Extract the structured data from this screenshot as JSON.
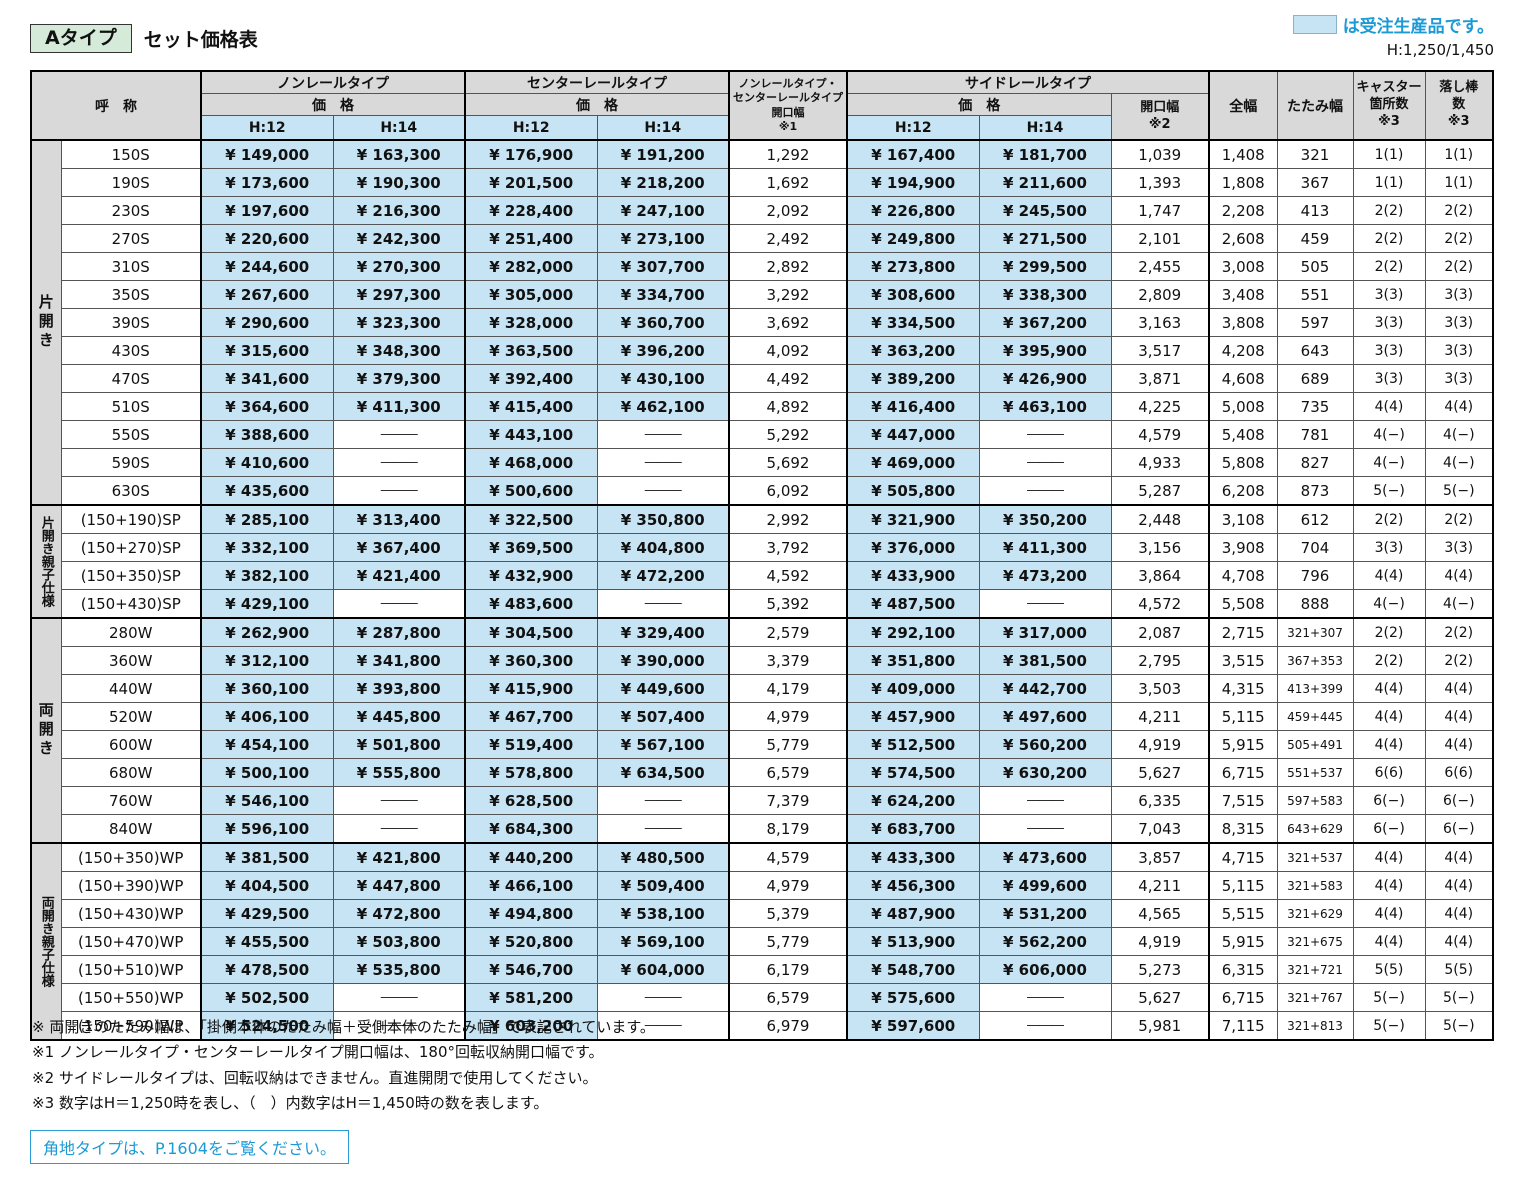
{
  "page": {
    "type_badge": "Aタイプ",
    "title": "セット価格表",
    "legend_text": "は受注生産品です。",
    "height_note": "H:1,250/1,450"
  },
  "colors": {
    "made_to_order_blue": "#c6e4f3",
    "header_gray": "#d9d9d9",
    "legend_text_blue": "#1c9ad6"
  },
  "table": {
    "headers": {
      "name": "呼　称",
      "nonrail": "ノンレールタイプ",
      "centerrail": "センターレールタイプ",
      "siderail": "サイドレールタイプ",
      "price": "価　格",
      "h12": "H:12",
      "h14": "H:14",
      "opening1_l1": "ノンレールタイプ・",
      "opening1_l2": "センターレールタイプ",
      "opening1_l3": "開口幅",
      "opening1_note": "※1",
      "opening2": "開口幅",
      "opening2_note": "※2",
      "zenpuku": "全幅",
      "tatami": "たたみ幅",
      "caster_l1": "キャスター",
      "caster_l2": "箇所数",
      "caster_note": "※3",
      "drop_l1": "落し棒",
      "drop_l2": "数",
      "drop_note": "※3"
    },
    "groups": [
      {
        "label": "片開き",
        "rows": [
          {
            "name": "150S",
            "nr12": "¥ 149,000",
            "nr14": "¥ 163,300",
            "cr12": "¥ 176,900",
            "cr14": "¥ 191,200",
            "open1": "1,292",
            "sr12": "¥ 167,400",
            "sr14": "¥ 181,700",
            "open2": "1,039",
            "zen": "1,408",
            "tatami": "321",
            "caster": "1(1)",
            "drop": "1(1)"
          },
          {
            "name": "190S",
            "nr12": "¥ 173,600",
            "nr14": "¥ 190,300",
            "cr12": "¥ 201,500",
            "cr14": "¥ 218,200",
            "open1": "1,692",
            "sr12": "¥ 194,900",
            "sr14": "¥ 211,600",
            "open2": "1,393",
            "zen": "1,808",
            "tatami": "367",
            "caster": "1(1)",
            "drop": "1(1)"
          },
          {
            "name": "230S",
            "nr12": "¥ 197,600",
            "nr14": "¥ 216,300",
            "cr12": "¥ 228,400",
            "cr14": "¥ 247,100",
            "open1": "2,092",
            "sr12": "¥ 226,800",
            "sr14": "¥ 245,500",
            "open2": "1,747",
            "zen": "2,208",
            "tatami": "413",
            "caster": "2(2)",
            "drop": "2(2)"
          },
          {
            "name": "270S",
            "nr12": "¥ 220,600",
            "nr14": "¥ 242,300",
            "cr12": "¥ 251,400",
            "cr14": "¥ 273,100",
            "open1": "2,492",
            "sr12": "¥ 249,800",
            "sr14": "¥ 271,500",
            "open2": "2,101",
            "zen": "2,608",
            "tatami": "459",
            "caster": "2(2)",
            "drop": "2(2)"
          },
          {
            "name": "310S",
            "nr12": "¥ 244,600",
            "nr14": "¥ 270,300",
            "cr12": "¥ 282,000",
            "cr14": "¥ 307,700",
            "open1": "2,892",
            "sr12": "¥ 273,800",
            "sr14": "¥ 299,500",
            "open2": "2,455",
            "zen": "3,008",
            "tatami": "505",
            "caster": "2(2)",
            "drop": "2(2)"
          },
          {
            "name": "350S",
            "nr12": "¥ 267,600",
            "nr14": "¥ 297,300",
            "cr12": "¥ 305,000",
            "cr14": "¥ 334,700",
            "open1": "3,292",
            "sr12": "¥ 308,600",
            "sr14": "¥ 338,300",
            "open2": "2,809",
            "zen": "3,408",
            "tatami": "551",
            "caster": "3(3)",
            "drop": "3(3)"
          },
          {
            "name": "390S",
            "nr12": "¥ 290,600",
            "nr14": "¥ 323,300",
            "cr12": "¥ 328,000",
            "cr14": "¥ 360,700",
            "open1": "3,692",
            "sr12": "¥ 334,500",
            "sr14": "¥ 367,200",
            "open2": "3,163",
            "zen": "3,808",
            "tatami": "597",
            "caster": "3(3)",
            "drop": "3(3)"
          },
          {
            "name": "430S",
            "nr12": "¥ 315,600",
            "nr14": "¥ 348,300",
            "cr12": "¥ 363,500",
            "cr14": "¥ 396,200",
            "open1": "4,092",
            "sr12": "¥ 363,200",
            "sr14": "¥ 395,900",
            "open2": "3,517",
            "zen": "4,208",
            "tatami": "643",
            "caster": "3(3)",
            "drop": "3(3)"
          },
          {
            "name": "470S",
            "nr12": "¥ 341,600",
            "nr14": "¥ 379,300",
            "cr12": "¥ 392,400",
            "cr14": "¥ 430,100",
            "open1": "4,492",
            "sr12": "¥ 389,200",
            "sr14": "¥ 426,900",
            "open2": "3,871",
            "zen": "4,608",
            "tatami": "689",
            "caster": "3(3)",
            "drop": "3(3)"
          },
          {
            "name": "510S",
            "nr12": "¥ 364,600",
            "nr14": "¥ 411,300",
            "cr12": "¥ 415,400",
            "cr14": "¥ 462,100",
            "open1": "4,892",
            "sr12": "¥ 416,400",
            "sr14": "¥ 463,100",
            "open2": "4,225",
            "zen": "5,008",
            "tatami": "735",
            "caster": "4(4)",
            "drop": "4(4)"
          },
          {
            "name": "550S",
            "nr12": "¥ 388,600",
            "nr14": "―――",
            "cr12": "¥ 443,100",
            "cr14": "―――",
            "open1": "5,292",
            "sr12": "¥ 447,000",
            "sr14": "―――",
            "open2": "4,579",
            "zen": "5,408",
            "tatami": "781",
            "caster": "4(−)",
            "drop": "4(−)"
          },
          {
            "name": "590S",
            "nr12": "¥ 410,600",
            "nr14": "―――",
            "cr12": "¥ 468,000",
            "cr14": "―――",
            "open1": "5,692",
            "sr12": "¥ 469,000",
            "sr14": "―――",
            "open2": "4,933",
            "zen": "5,808",
            "tatami": "827",
            "caster": "4(−)",
            "drop": "4(−)"
          },
          {
            "name": "630S",
            "nr12": "¥ 435,600",
            "nr14": "―――",
            "cr12": "¥ 500,600",
            "cr14": "―――",
            "open1": "6,092",
            "sr12": "¥ 505,800",
            "sr14": "―――",
            "open2": "5,287",
            "zen": "6,208",
            "tatami": "873",
            "caster": "5(−)",
            "drop": "5(−)"
          }
        ]
      },
      {
        "label": "片開き親子仕様",
        "rows": [
          {
            "name": "(150+190)SP",
            "nr12": "¥ 285,100",
            "nr14": "¥ 313,400",
            "cr12": "¥ 322,500",
            "cr14": "¥ 350,800",
            "open1": "2,992",
            "sr12": "¥ 321,900",
            "sr14": "¥ 350,200",
            "open2": "2,448",
            "zen": "3,108",
            "tatami": "612",
            "caster": "2(2)",
            "drop": "2(2)"
          },
          {
            "name": "(150+270)SP",
            "nr12": "¥ 332,100",
            "nr14": "¥ 367,400",
            "cr12": "¥ 369,500",
            "cr14": "¥ 404,800",
            "open1": "3,792",
            "sr12": "¥ 376,000",
            "sr14": "¥ 411,300",
            "open2": "3,156",
            "zen": "3,908",
            "tatami": "704",
            "caster": "3(3)",
            "drop": "3(3)"
          },
          {
            "name": "(150+350)SP",
            "nr12": "¥ 382,100",
            "nr14": "¥ 421,400",
            "cr12": "¥ 432,900",
            "cr14": "¥ 472,200",
            "open1": "4,592",
            "sr12": "¥ 433,900",
            "sr14": "¥ 473,200",
            "open2": "3,864",
            "zen": "4,708",
            "tatami": "796",
            "caster": "4(4)",
            "drop": "4(4)"
          },
          {
            "name": "(150+430)SP",
            "nr12": "¥ 429,100",
            "nr14": "―――",
            "cr12": "¥ 483,600",
            "cr14": "―――",
            "open1": "5,392",
            "sr12": "¥ 487,500",
            "sr14": "―――",
            "open2": "4,572",
            "zen": "5,508",
            "tatami": "888",
            "caster": "4(−)",
            "drop": "4(−)"
          }
        ]
      },
      {
        "label": "両開き",
        "rows": [
          {
            "name": "280W",
            "nr12": "¥ 262,900",
            "nr14": "¥ 287,800",
            "cr12": "¥ 304,500",
            "cr14": "¥ 329,400",
            "open1": "2,579",
            "sr12": "¥ 292,100",
            "sr14": "¥ 317,000",
            "open2": "2,087",
            "zen": "2,715",
            "tatami": "321+307",
            "caster": "2(2)",
            "drop": "2(2)"
          },
          {
            "name": "360W",
            "nr12": "¥ 312,100",
            "nr14": "¥ 341,800",
            "cr12": "¥ 360,300",
            "cr14": "¥ 390,000",
            "open1": "3,379",
            "sr12": "¥ 351,800",
            "sr14": "¥ 381,500",
            "open2": "2,795",
            "zen": "3,515",
            "tatami": "367+353",
            "caster": "2(2)",
            "drop": "2(2)"
          },
          {
            "name": "440W",
            "nr12": "¥ 360,100",
            "nr14": "¥ 393,800",
            "cr12": "¥ 415,900",
            "cr14": "¥ 449,600",
            "open1": "4,179",
            "sr12": "¥ 409,000",
            "sr14": "¥ 442,700",
            "open2": "3,503",
            "zen": "4,315",
            "tatami": "413+399",
            "caster": "4(4)",
            "drop": "4(4)"
          },
          {
            "name": "520W",
            "nr12": "¥ 406,100",
            "nr14": "¥ 445,800",
            "cr12": "¥ 467,700",
            "cr14": "¥ 507,400",
            "open1": "4,979",
            "sr12": "¥ 457,900",
            "sr14": "¥ 497,600",
            "open2": "4,211",
            "zen": "5,115",
            "tatami": "459+445",
            "caster": "4(4)",
            "drop": "4(4)"
          },
          {
            "name": "600W",
            "nr12": "¥ 454,100",
            "nr14": "¥ 501,800",
            "cr12": "¥ 519,400",
            "cr14": "¥ 567,100",
            "open1": "5,779",
            "sr12": "¥ 512,500",
            "sr14": "¥ 560,200",
            "open2": "4,919",
            "zen": "5,915",
            "tatami": "505+491",
            "caster": "4(4)",
            "drop": "4(4)"
          },
          {
            "name": "680W",
            "nr12": "¥ 500,100",
            "nr14": "¥ 555,800",
            "cr12": "¥ 578,800",
            "cr14": "¥ 634,500",
            "open1": "6,579",
            "sr12": "¥ 574,500",
            "sr14": "¥ 630,200",
            "open2": "5,627",
            "zen": "6,715",
            "tatami": "551+537",
            "caster": "6(6)",
            "drop": "6(6)"
          },
          {
            "name": "760W",
            "nr12": "¥ 546,100",
            "nr14": "―――",
            "cr12": "¥ 628,500",
            "cr14": "―――",
            "open1": "7,379",
            "sr12": "¥ 624,200",
            "sr14": "―――",
            "open2": "6,335",
            "zen": "7,515",
            "tatami": "597+583",
            "caster": "6(−)",
            "drop": "6(−)"
          },
          {
            "name": "840W",
            "nr12": "¥ 596,100",
            "nr14": "―――",
            "cr12": "¥ 684,300",
            "cr14": "―――",
            "open1": "8,179",
            "sr12": "¥ 683,700",
            "sr14": "―――",
            "open2": "7,043",
            "zen": "8,315",
            "tatami": "643+629",
            "caster": "6(−)",
            "drop": "6(−)"
          }
        ]
      },
      {
        "label": "両開き親子仕様",
        "rows": [
          {
            "name": "(150+350)WP",
            "nr12": "¥ 381,500",
            "nr14": "¥ 421,800",
            "cr12": "¥ 440,200",
            "cr14": "¥ 480,500",
            "open1": "4,579",
            "sr12": "¥ 433,300",
            "sr14": "¥ 473,600",
            "open2": "3,857",
            "zen": "4,715",
            "tatami": "321+537",
            "caster": "4(4)",
            "drop": "4(4)"
          },
          {
            "name": "(150+390)WP",
            "nr12": "¥ 404,500",
            "nr14": "¥ 447,800",
            "cr12": "¥ 466,100",
            "cr14": "¥ 509,400",
            "open1": "4,979",
            "sr12": "¥ 456,300",
            "sr14": "¥ 499,600",
            "open2": "4,211",
            "zen": "5,115",
            "tatami": "321+583",
            "caster": "4(4)",
            "drop": "4(4)"
          },
          {
            "name": "(150+430)WP",
            "nr12": "¥ 429,500",
            "nr14": "¥ 472,800",
            "cr12": "¥ 494,800",
            "cr14": "¥ 538,100",
            "open1": "5,379",
            "sr12": "¥ 487,900",
            "sr14": "¥ 531,200",
            "open2": "4,565",
            "zen": "5,515",
            "tatami": "321+629",
            "caster": "4(4)",
            "drop": "4(4)"
          },
          {
            "name": "(150+470)WP",
            "nr12": "¥ 455,500",
            "nr14": "¥ 503,800",
            "cr12": "¥ 520,800",
            "cr14": "¥ 569,100",
            "open1": "5,779",
            "sr12": "¥ 513,900",
            "sr14": "¥ 562,200",
            "open2": "4,919",
            "zen": "5,915",
            "tatami": "321+675",
            "caster": "4(4)",
            "drop": "4(4)"
          },
          {
            "name": "(150+510)WP",
            "nr12": "¥ 478,500",
            "nr14": "¥ 535,800",
            "cr12": "¥ 546,700",
            "cr14": "¥ 604,000",
            "open1": "6,179",
            "sr12": "¥ 548,700",
            "sr14": "¥ 606,000",
            "open2": "5,273",
            "zen": "6,315",
            "tatami": "321+721",
            "caster": "5(5)",
            "drop": "5(5)"
          },
          {
            "name": "(150+550)WP",
            "nr12": "¥ 502,500",
            "nr14": "―――",
            "cr12": "¥ 581,200",
            "cr14": "―――",
            "open1": "6,579",
            "sr12": "¥ 575,600",
            "sr14": "―――",
            "open2": "5,627",
            "zen": "6,715",
            "tatami": "321+767",
            "caster": "5(−)",
            "drop": "5(−)"
          },
          {
            "name": "(150+590)WP",
            "nr12": "¥ 524,500",
            "nr14": "―――",
            "cr12": "¥ 603,200",
            "cr14": "―――",
            "open1": "6,979",
            "sr12": "¥ 597,600",
            "sr14": "―――",
            "open2": "5,981",
            "zen": "7,115",
            "tatami": "321+813",
            "caster": "5(−)",
            "drop": "5(−)"
          }
        ]
      }
    ]
  },
  "footnotes": [
    "※ 両開きのたたみ幅は、「掛側本体のたたみ幅＋受側本体のたたみ幅」で表記されています。",
    "※1 ノンレールタイプ・センターレールタイプ開口幅は、180°回転収納開口幅です。",
    "※2 サイドレールタイプは、回転収納はできません。直進開閉で使用してください。",
    "※3 数字はH＝1,250時を表し、（　）内数字はH＝1,450時の数を表します。"
  ],
  "corner_note": "角地タイプは、P.1604をご覧ください。"
}
